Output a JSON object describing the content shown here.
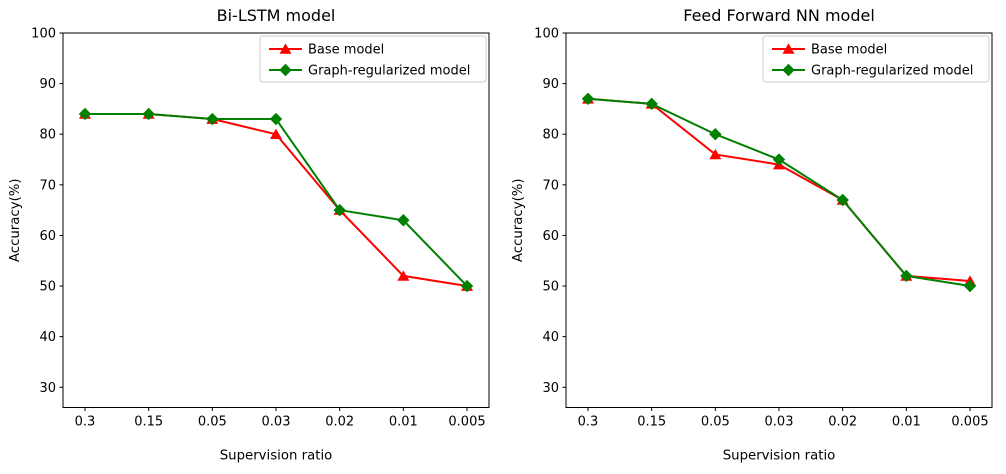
{
  "figure": {
    "background": "#ffffff",
    "text_color": "#000000",
    "spine_color": "#000000",
    "legend_border_color": "#cccccc",
    "legend_background": "#ffffff"
  },
  "chart_data": [
    {
      "type": "line",
      "title": "Bi-LSTM model",
      "xlabel": "Supervision ratio",
      "ylabel": "Accuracy(%)",
      "categories": [
        "0.3",
        "0.15",
        "0.05",
        "0.03",
        "0.02",
        "0.01",
        "0.005"
      ],
      "yticks": [
        100,
        90,
        80,
        70,
        60,
        50,
        40,
        30
      ],
      "ylim": [
        26,
        100
      ],
      "grid": false,
      "legend_position": "upper right",
      "series": [
        {
          "name": "Base model",
          "color": "#ff0000",
          "marker": "triangle-up",
          "values": [
            84,
            84,
            83,
            80,
            65,
            52,
            50
          ]
        },
        {
          "name": "Graph-regularized model",
          "color": "#008000",
          "marker": "diamond",
          "values": [
            84,
            84,
            83,
            83,
            65,
            63,
            50
          ]
        }
      ]
    },
    {
      "type": "line",
      "title": "Feed Forward NN model",
      "xlabel": "Supervision ratio",
      "ylabel": "Accuracy(%)",
      "categories": [
        "0.3",
        "0.15",
        "0.05",
        "0.03",
        "0.02",
        "0.01",
        "0.005"
      ],
      "yticks": [
        100,
        90,
        80,
        70,
        60,
        50,
        40,
        30
      ],
      "ylim": [
        26,
        100
      ],
      "grid": false,
      "legend_position": "upper right",
      "series": [
        {
          "name": "Base model",
          "color": "#ff0000",
          "marker": "triangle-up",
          "values": [
            87,
            86,
            76,
            74,
            67,
            52,
            51
          ]
        },
        {
          "name": "Graph-regularized model",
          "color": "#008000",
          "marker": "diamond",
          "values": [
            87,
            86,
            80,
            75,
            67,
            52,
            50
          ]
        }
      ]
    }
  ]
}
